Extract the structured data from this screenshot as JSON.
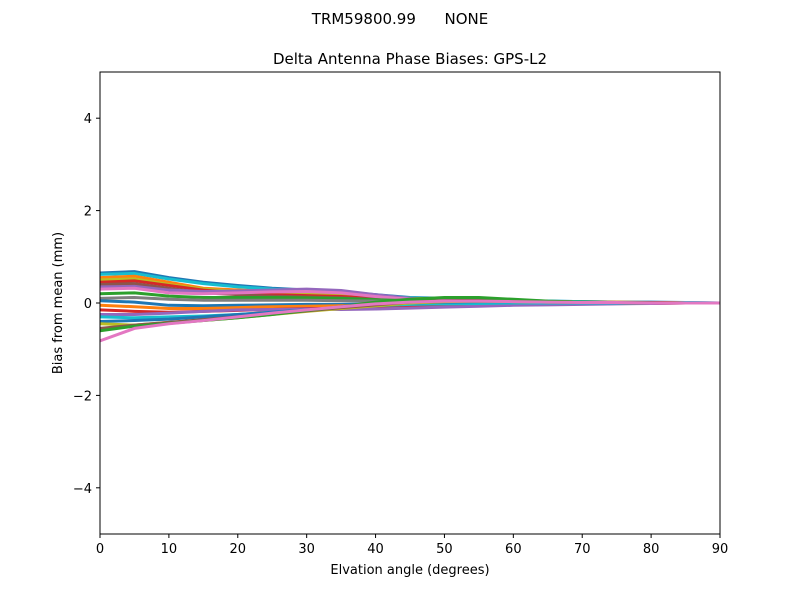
{
  "suptitle": "TRM59800.99      NONE",
  "chart_data": {
    "type": "line",
    "title": "Delta Antenna Phase Biases: GPS-L2",
    "xlabel": "Elvation angle (degrees)",
    "ylabel": "Bias from mean (mm)",
    "xlim": [
      0,
      90
    ],
    "ylim": [
      -5,
      5
    ],
    "xticks": [
      0,
      10,
      20,
      30,
      40,
      50,
      60,
      70,
      80,
      90
    ],
    "yticks": [
      -4,
      -2,
      0,
      2,
      4
    ],
    "grid": false,
    "legend": "none",
    "x": [
      0,
      5,
      10,
      15,
      20,
      25,
      30,
      35,
      40,
      45,
      50,
      55,
      60,
      65,
      70,
      75,
      80,
      85,
      90
    ],
    "series": [
      {
        "color": "#1f77b4",
        "values": [
          0.65,
          0.68,
          0.55,
          0.45,
          0.38,
          0.32,
          0.28,
          0.24,
          0.18,
          0.12,
          0.1,
          0.08,
          0.06,
          0.04,
          0.03,
          0.02,
          0.02,
          0.01,
          0.0
        ]
      },
      {
        "color": "#17becf",
        "values": [
          0.62,
          0.64,
          0.52,
          0.42,
          0.35,
          0.3,
          0.26,
          0.22,
          0.16,
          0.11,
          0.09,
          0.07,
          0.05,
          0.04,
          0.03,
          0.02,
          0.01,
          0.01,
          0.0
        ]
      },
      {
        "color": "#ff7f0e",
        "values": [
          0.55,
          0.58,
          0.45,
          0.32,
          0.28,
          0.25,
          0.22,
          0.2,
          0.15,
          0.1,
          0.08,
          0.06,
          0.05,
          0.03,
          0.02,
          0.02,
          0.01,
          0.0,
          0.0
        ]
      },
      {
        "color": "#bcbd22",
        "values": [
          0.5,
          0.52,
          0.4,
          0.3,
          0.25,
          0.22,
          0.2,
          0.18,
          0.14,
          0.1,
          0.08,
          0.06,
          0.05,
          0.03,
          0.02,
          0.01,
          0.01,
          0.0,
          0.0
        ]
      },
      {
        "color": "#d62728",
        "values": [
          0.45,
          0.48,
          0.38,
          0.28,
          0.22,
          0.18,
          0.16,
          0.14,
          0.1,
          0.07,
          0.06,
          0.05,
          0.04,
          0.03,
          0.02,
          0.01,
          0.01,
          0.0,
          0.0
        ]
      },
      {
        "color": "#8c564b",
        "values": [
          0.4,
          0.42,
          0.32,
          0.22,
          0.18,
          0.15,
          0.13,
          0.11,
          0.08,
          0.06,
          0.05,
          0.04,
          0.03,
          0.02,
          0.02,
          0.01,
          0.0,
          0.0,
          0.0
        ]
      },
      {
        "color": "#9467bd",
        "values": [
          0.35,
          0.36,
          0.28,
          0.25,
          0.26,
          0.28,
          0.3,
          0.27,
          0.18,
          0.1,
          0.06,
          0.04,
          0.03,
          0.02,
          0.02,
          0.01,
          0.0,
          0.0,
          0.0
        ]
      },
      {
        "color": "#e377c2",
        "values": [
          0.3,
          0.32,
          0.22,
          0.2,
          0.22,
          0.24,
          0.25,
          0.22,
          0.14,
          0.08,
          0.05,
          0.04,
          0.03,
          0.02,
          0.01,
          0.01,
          0.0,
          0.0,
          0.0
        ]
      },
      {
        "color": "#2ca02c",
        "values": [
          0.2,
          0.22,
          0.15,
          0.12,
          0.12,
          0.12,
          0.11,
          0.1,
          0.07,
          0.05,
          0.04,
          0.03,
          0.02,
          0.02,
          0.01,
          0.01,
          0.0,
          0.0,
          0.0
        ]
      },
      {
        "color": "#7f7f7f",
        "values": [
          0.1,
          0.12,
          0.08,
          0.06,
          0.06,
          0.06,
          0.06,
          0.05,
          0.04,
          0.03,
          0.03,
          0.02,
          0.02,
          0.01,
          0.01,
          0.0,
          0.0,
          0.0,
          0.0
        ]
      },
      {
        "color": "#1f77b4",
        "values": [
          0.05,
          0.02,
          -0.05,
          -0.06,
          -0.05,
          -0.04,
          -0.03,
          -0.03,
          -0.02,
          -0.02,
          -0.01,
          -0.01,
          -0.01,
          0.0,
          0.0,
          0.0,
          0.0,
          0.0,
          0.0
        ]
      },
      {
        "color": "#ff7f0e",
        "values": [
          -0.05,
          -0.08,
          -0.12,
          -0.12,
          -0.1,
          -0.08,
          -0.07,
          -0.06,
          -0.05,
          -0.04,
          -0.03,
          -0.02,
          -0.02,
          -0.01,
          -0.01,
          0.0,
          0.0,
          0.0,
          0.0
        ]
      },
      {
        "color": "#d62728",
        "values": [
          -0.15,
          -0.18,
          -0.2,
          -0.18,
          -0.16,
          -0.14,
          -0.12,
          -0.12,
          -0.1,
          -0.08,
          -0.06,
          -0.05,
          -0.04,
          -0.03,
          -0.02,
          -0.01,
          -0.01,
          0.0,
          0.0
        ]
      },
      {
        "color": "#9467bd",
        "values": [
          -0.25,
          -0.25,
          -0.22,
          -0.18,
          -0.15,
          -0.14,
          -0.13,
          -0.14,
          -0.13,
          -0.11,
          -0.09,
          -0.07,
          -0.05,
          -0.04,
          -0.03,
          -0.02,
          -0.01,
          0.0,
          0.0
        ]
      },
      {
        "color": "#17becf",
        "values": [
          -0.3,
          -0.32,
          -0.3,
          -0.28,
          -0.25,
          -0.2,
          -0.15,
          -0.1,
          -0.06,
          -0.03,
          -0.02,
          -0.01,
          0.0,
          0.0,
          0.0,
          0.0,
          0.0,
          0.0,
          0.0
        ]
      },
      {
        "color": "#1f77b4",
        "values": [
          -0.4,
          -0.38,
          -0.35,
          -0.3,
          -0.25,
          -0.2,
          -0.15,
          -0.1,
          -0.05,
          0.0,
          0.02,
          0.03,
          0.03,
          0.02,
          0.01,
          0.01,
          0.0,
          0.0,
          0.0
        ]
      },
      {
        "color": "#bcbd22",
        "values": [
          -0.45,
          -0.48,
          -0.42,
          -0.38,
          -0.32,
          -0.25,
          -0.18,
          -0.12,
          -0.06,
          0.0,
          0.03,
          0.04,
          0.03,
          0.02,
          0.02,
          0.01,
          0.0,
          0.0,
          0.0
        ]
      },
      {
        "color": "#8c564b",
        "values": [
          -0.55,
          -0.48,
          -0.42,
          -0.36,
          -0.3,
          -0.24,
          -0.17,
          -0.1,
          -0.04,
          0.02,
          0.05,
          0.06,
          0.05,
          0.03,
          0.02,
          0.01,
          0.01,
          0.0,
          0.0
        ]
      },
      {
        "color": "#2ca02c",
        "values": [
          -0.6,
          -0.5,
          -0.44,
          -0.38,
          -0.32,
          -0.25,
          -0.16,
          -0.08,
          0.02,
          0.08,
          0.12,
          0.12,
          0.08,
          0.04,
          0.02,
          0.01,
          0.0,
          0.0,
          0.0
        ]
      },
      {
        "color": "#e377c2",
        "values": [
          -0.82,
          -0.55,
          -0.45,
          -0.38,
          -0.3,
          -0.22,
          -0.15,
          -0.08,
          -0.02,
          0.02,
          0.04,
          0.04,
          0.03,
          0.02,
          0.01,
          0.01,
          0.0,
          0.0,
          0.0
        ]
      }
    ]
  }
}
